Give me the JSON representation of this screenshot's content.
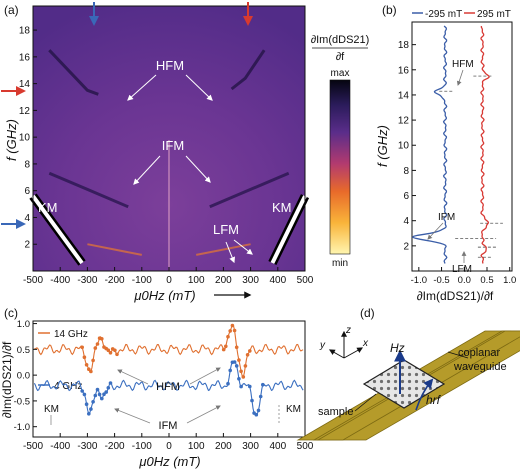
{
  "panels": {
    "a": {
      "label": "(a)",
      "xlabel": "μ0Hz (mT)",
      "ylabel": "f (GHz)",
      "colorbar": {
        "title_num": "∂Im(dDS21)",
        "title_den": "∂f",
        "max": "max",
        "min": "min",
        "colors": [
          "#fff6b0",
          "#f9b43a",
          "#e86a2a",
          "#b23a6f",
          "#5a2d8a",
          "#2a1b5a",
          "#050510"
        ]
      },
      "annotations": {
        "hfm": "HFM",
        "ifm": "IFM",
        "lfm": "LFM",
        "km_left": "KM",
        "km_right": "KM"
      },
      "arrows": {
        "top_blue": "blue",
        "top_red": "red",
        "left_red": "red",
        "left_blue": "blue"
      }
    },
    "b": {
      "label": "(b)",
      "xlabel": "∂Im(dDS21)/∂f",
      "ylabel": "f (GHz)",
      "legend": [
        "-295 mT",
        "295 mT"
      ],
      "annotations": {
        "hfm": "HFM",
        "ifm": "IFM",
        "lfm": "LFM"
      }
    },
    "c": {
      "label": "(c)",
      "xlabel": "μ0Hz (mT)",
      "ylabel": "∂Im(dDS21)/∂f",
      "legend": [
        "14 GHz",
        "4 GHz"
      ],
      "annotations": {
        "hfm": "HFM",
        "ifm": "IFM",
        "km_left": "KM",
        "km_right": "KM"
      }
    },
    "d": {
      "label": "(d)",
      "labels": {
        "z": "z",
        "y": "y",
        "x": "x",
        "hz": "Hz",
        "hrf": "hrf",
        "coplanar": "coplanar",
        "waveguide": "waveguide",
        "sample": "sample"
      }
    }
  },
  "chart_data": [
    {
      "type": "heatmap",
      "panel": "a",
      "xlabel": "μ0Hz (mT)",
      "ylabel": "f (GHz)",
      "x_ticks": [
        -500,
        -400,
        -300,
        -200,
        -100,
        0,
        100,
        200,
        300,
        400,
        500
      ],
      "y_ticks": [
        2,
        4,
        6,
        8,
        10,
        12,
        14,
        16,
        18
      ],
      "xlim": [
        -500,
        500
      ],
      "ylim": [
        0,
        19.8
      ],
      "modes": {
        "KM": {
          "left": [
            [
              -500,
              5.6
            ],
            [
              -320,
              0.6
            ]
          ],
          "right": [
            [
              380,
              0.6
            ],
            [
              500,
              5.6
            ]
          ]
        },
        "HFM": {
          "left": [
            [
              -440,
              16.5
            ],
            [
              -300,
              13.5
            ],
            [
              -260,
              13.2
            ]
          ],
          "right": [
            [
              230,
              13.6
            ],
            [
              280,
              14.4
            ],
            [
              350,
              16.5
            ]
          ]
        },
        "IFM": {
          "left": [
            [
              -440,
              7.3
            ],
            [
              -300,
              6.1
            ],
            [
              -150,
              4.8
            ]
          ],
          "right": [
            [
              150,
              4.8
            ],
            [
              300,
              6.1
            ],
            [
              440,
              7.3
            ]
          ]
        },
        "LFM": {
          "left": [
            [
              -300,
              2.0
            ],
            [
              -100,
              1.2
            ]
          ],
          "right": [
            [
              100,
              1.2
            ],
            [
              300,
              2.0
            ]
          ]
        }
      }
    },
    {
      "type": "line",
      "panel": "b",
      "xlabel": "∂Im(dDS21)/∂f",
      "ylabel": "f (GHz)",
      "x_ticks": [
        -1.0,
        -0.5,
        0.0,
        0.5,
        1.0
      ],
      "y_ticks": [
        2,
        4,
        6,
        8,
        10,
        12,
        14,
        16,
        18
      ],
      "xlim": [
        -1.15,
        1.05
      ],
      "ylim": [
        0,
        19.8
      ],
      "series": [
        {
          "name": "-295 mT",
          "color": "#3b5ea8",
          "baseline": -0.42,
          "features": [
            [
              2.7,
              -0.72
            ],
            [
              14.2,
              -0.22
            ]
          ]
        },
        {
          "name": "295 mT",
          "color": "#d83a35",
          "baseline": 0.4,
          "features": [
            [
              1.8,
              0.08
            ],
            [
              3.8,
              0.14
            ],
            [
              15.5,
              0.12
            ]
          ]
        }
      ]
    },
    {
      "type": "line",
      "panel": "c",
      "xlabel": "μ0Hz (mT)",
      "ylabel": "∂Im(dDS21)/∂f",
      "x_ticks": [
        -500,
        -400,
        -300,
        -200,
        -100,
        0,
        100,
        200,
        300,
        400,
        500
      ],
      "y_ticks": [
        -1.0,
        -0.5,
        0.0,
        0.5,
        1.0
      ],
      "xlim": [
        -500,
        500
      ],
      "ylim": [
        -1.2,
        1.05
      ],
      "series": [
        {
          "name": "14 GHz",
          "color": "#e07030",
          "baseline": 0.5,
          "features": [
            [
              -290,
              -0.4
            ],
            [
              -250,
              0.25
            ],
            [
              -220,
              -0.1
            ],
            [
              230,
              0.45
            ],
            [
              270,
              -0.45
            ]
          ]
        },
        {
          "name": "4 GHz",
          "color": "#3b6fc0",
          "baseline": -0.2,
          "features": [
            [
              -290,
              -0.55
            ],
            [
              -240,
              -0.2
            ],
            [
              240,
              0.45
            ],
            [
              320,
              -0.55
            ]
          ]
        }
      ]
    }
  ]
}
